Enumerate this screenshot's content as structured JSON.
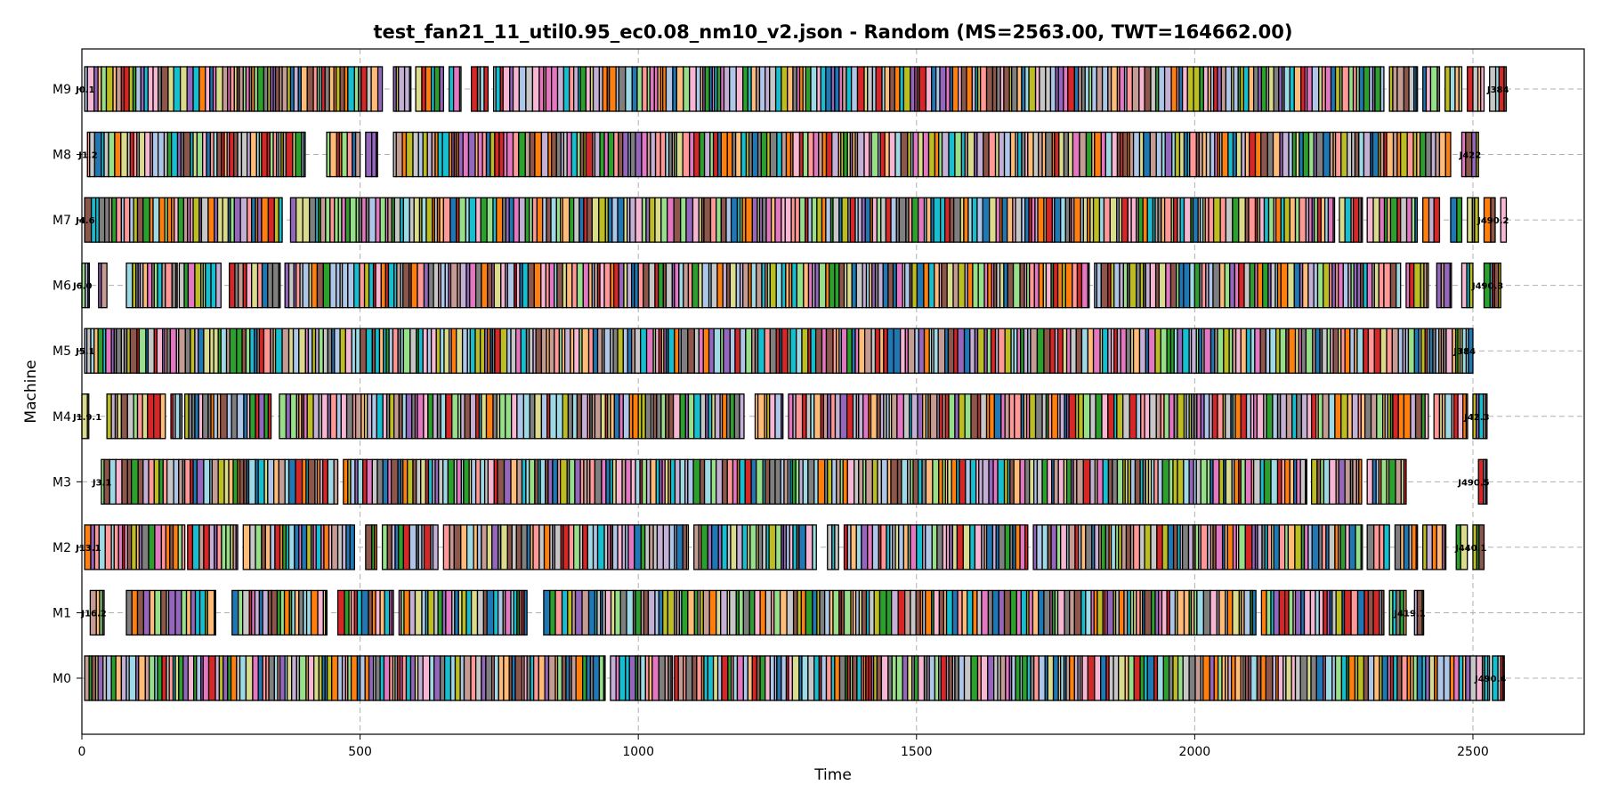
{
  "chart_data": {
    "type": "gantt",
    "title": "test_fan21_11_util0.95_ec0.08_nm10_v2.json - Random (MS=2563.00, TWT=164662.00)",
    "xlabel": "Time",
    "ylabel": "Machine",
    "xlim": [
      0,
      2700
    ],
    "xticks": [
      0,
      500,
      1000,
      1500,
      2000,
      2500
    ],
    "grid": true,
    "machines": [
      "M0",
      "M1",
      "M2",
      "M3",
      "M4",
      "M5",
      "M6",
      "M7",
      "M8",
      "M9"
    ],
    "palette": [
      "#1f77b4",
      "#aec7e8",
      "#ff7f0e",
      "#ffbb78",
      "#2ca02c",
      "#98df8a",
      "#d62728",
      "#ff9896",
      "#9467bd",
      "#c5b0d5",
      "#8c564b",
      "#c49c94",
      "#e377c2",
      "#f7b6d2",
      "#7f7f7f",
      "#c7c7c7",
      "#bcbd22",
      "#dbdb8d",
      "#17becf",
      "#9edae5"
    ],
    "rows": [
      {
        "machine": "M0",
        "segments": [
          [
            5,
            940
          ],
          [
            950,
            1060
          ],
          [
            1065,
            2530
          ],
          [
            2535,
            2555
          ]
        ],
        "edge_labels": [
          "",
          "J490.4"
        ]
      },
      {
        "machine": "M1",
        "segments": [
          [
            15,
            40
          ],
          [
            80,
            240
          ],
          [
            270,
            440
          ],
          [
            460,
            560
          ],
          [
            570,
            800
          ],
          [
            830,
            2110
          ],
          [
            2120,
            2340
          ],
          [
            2350,
            2380
          ],
          [
            2395,
            2410
          ]
        ],
        "edge_labels": [
          "J16.2",
          "J419.1"
        ]
      },
      {
        "machine": "M2",
        "segments": [
          [
            5,
            185
          ],
          [
            190,
            280
          ],
          [
            290,
            490
          ],
          [
            510,
            530
          ],
          [
            540,
            640
          ],
          [
            650,
            1090
          ],
          [
            1100,
            1320
          ],
          [
            1340,
            1360
          ],
          [
            1370,
            1700
          ],
          [
            1710,
            2300
          ],
          [
            2310,
            2350
          ],
          [
            2360,
            2400
          ],
          [
            2410,
            2450
          ],
          [
            2470,
            2490
          ],
          [
            2500,
            2520
          ]
        ],
        "edge_labels": [
          "J13.1",
          "J440.1"
        ]
      },
      {
        "machine": "M3",
        "segments": [
          [
            35,
            460
          ],
          [
            470,
            2200
          ],
          [
            2210,
            2300
          ],
          [
            2310,
            2380
          ],
          [
            2510,
            2525
          ]
        ],
        "edge_labels": [
          "J3.1",
          "J490.5"
        ]
      },
      {
        "machine": "M4",
        "segments": [
          [
            0,
            12
          ],
          [
            45,
            150
          ],
          [
            160,
            180
          ],
          [
            185,
            340
          ],
          [
            350,
            350
          ],
          [
            355,
            1190
          ],
          [
            1210,
            1260
          ],
          [
            1270,
            2420
          ],
          [
            2430,
            2490
          ],
          [
            2500,
            2525
          ]
        ],
        "edge_labels": [
          "J1.9.1",
          "J42.3"
        ]
      },
      {
        "machine": "M5",
        "segments": [
          [
            5,
            2500
          ]
        ],
        "edge_labels": [
          "J5.1",
          "J384"
        ]
      },
      {
        "machine": "M6",
        "segments": [
          [
            0,
            12
          ],
          [
            30,
            45
          ],
          [
            80,
            170
          ],
          [
            175,
            250
          ],
          [
            265,
            355
          ],
          [
            365,
            1810
          ],
          [
            1820,
            2370
          ],
          [
            2380,
            2420
          ],
          [
            2435,
            2460
          ],
          [
            2480,
            2500
          ],
          [
            2520,
            2550
          ]
        ],
        "edge_labels": [
          "J6.0",
          "J490.3"
        ]
      },
      {
        "machine": "M7",
        "segments": [
          [
            5,
            360
          ],
          [
            375,
            2250
          ],
          [
            2260,
            2300
          ],
          [
            2310,
            2400
          ],
          [
            2410,
            2440
          ],
          [
            2460,
            2480
          ],
          [
            2490,
            2510
          ],
          [
            2520,
            2540
          ],
          [
            2550,
            2560
          ]
        ],
        "edge_labels": [
          "J4.6",
          "J490.2"
        ]
      },
      {
        "machine": "M8",
        "segments": [
          [
            10,
            400
          ],
          [
            440,
            500
          ],
          [
            510,
            530
          ],
          [
            560,
            2460
          ],
          [
            2480,
            2510
          ]
        ],
        "edge_labels": [
          "J1.2",
          "J422"
        ]
      },
      {
        "machine": "M9",
        "segments": [
          [
            5,
            540
          ],
          [
            560,
            590
          ],
          [
            600,
            650
          ],
          [
            660,
            680
          ],
          [
            700,
            730
          ],
          [
            740,
            2340
          ],
          [
            2350,
            2400
          ],
          [
            2410,
            2440
          ],
          [
            2450,
            2480
          ],
          [
            2490,
            2520
          ],
          [
            2530,
            2560
          ]
        ],
        "edge_labels": [
          "J0.1",
          "J384"
        ]
      }
    ]
  }
}
